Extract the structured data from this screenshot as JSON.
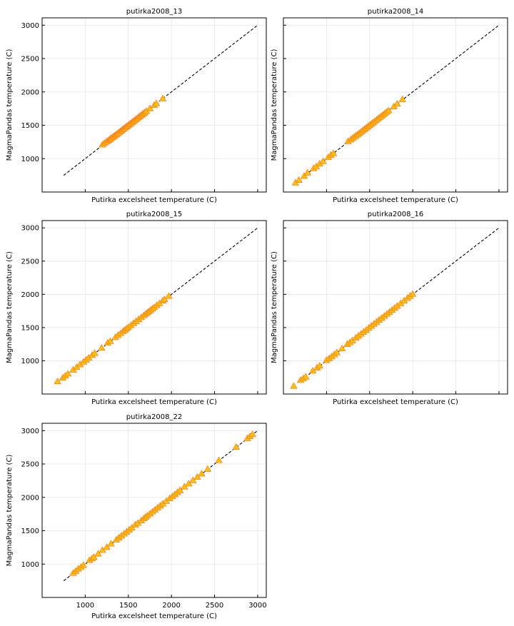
{
  "chart_data": [
    {
      "type": "scatter",
      "title": "putirka2008_13",
      "xlabel": "Putirka excelsheet temperature (C)",
      "ylabel": "MagmaPandas temperature (C)",
      "xlim": [
        500,
        3100
      ],
      "ylim": [
        500,
        3110
      ],
      "xticks": [
        1000,
        1500,
        2000,
        2500,
        3000
      ],
      "yticks": [
        1000,
        1500,
        2000,
        2500,
        3000
      ],
      "show_xtick_labels": false,
      "show_ytick_labels": true,
      "grid": true,
      "reference_line": {
        "x": [
          750,
          3000
        ],
        "y": [
          750,
          3000
        ],
        "style": "dashed",
        "color": "#000000"
      },
      "marker": {
        "shape": "triangle",
        "face": "#ffc107",
        "edge": "#ff7a1f"
      },
      "points": [
        [
          1200,
          1210
        ],
        [
          1220,
          1230
        ],
        [
          1240,
          1250
        ],
        [
          1260,
          1265
        ],
        [
          1275,
          1280
        ],
        [
          1290,
          1295
        ],
        [
          1300,
          1305
        ],
        [
          1315,
          1320
        ],
        [
          1330,
          1335
        ],
        [
          1345,
          1350
        ],
        [
          1360,
          1362
        ],
        [
          1375,
          1378
        ],
        [
          1390,
          1392
        ],
        [
          1405,
          1408
        ],
        [
          1420,
          1422
        ],
        [
          1435,
          1438
        ],
        [
          1450,
          1452
        ],
        [
          1465,
          1468
        ],
        [
          1480,
          1482
        ],
        [
          1495,
          1498
        ],
        [
          1510,
          1512
        ],
        [
          1525,
          1528
        ],
        [
          1540,
          1542
        ],
        [
          1555,
          1558
        ],
        [
          1570,
          1572
        ],
        [
          1585,
          1588
        ],
        [
          1600,
          1602
        ],
        [
          1615,
          1618
        ],
        [
          1630,
          1632
        ],
        [
          1645,
          1648
        ],
        [
          1660,
          1662
        ],
        [
          1675,
          1678
        ],
        [
          1690,
          1692
        ],
        [
          1710,
          1712
        ],
        [
          1750,
          1752
        ],
        [
          1800,
          1802
        ],
        [
          1825,
          1828
        ],
        [
          1900,
          1902
        ]
      ]
    },
    {
      "type": "scatter",
      "title": "putirka2008_14",
      "xlabel": "Putirka excelsheet temperature (C)",
      "ylabel": "MagmaPandas temperature (C)",
      "xlim": [
        500,
        3100
      ],
      "ylim": [
        500,
        3110
      ],
      "xticks": [
        1000,
        1500,
        2000,
        2500,
        3000
      ],
      "yticks": [
        1000,
        1500,
        2000,
        2500,
        3000
      ],
      "show_xtick_labels": false,
      "show_ytick_labels": false,
      "grid": true,
      "reference_line": {
        "x": [
          750,
          3000
        ],
        "y": [
          750,
          3000
        ],
        "style": "dashed",
        "color": "#000000"
      },
      "marker": {
        "shape": "triangle",
        "face": "#ffc107",
        "edge": "#ff7a1f"
      },
      "points": [
        [
          640,
          640
        ],
        [
          680,
          680
        ],
        [
          740,
          740
        ],
        [
          780,
          790
        ],
        [
          850,
          855
        ],
        [
          880,
          880
        ],
        [
          920,
          925
        ],
        [
          960,
          960
        ],
        [
          1020,
          1020
        ],
        [
          1050,
          1055
        ],
        [
          1080,
          1080
        ],
        [
          1250,
          1260
        ],
        [
          1280,
          1285
        ],
        [
          1300,
          1305
        ],
        [
          1320,
          1325
        ],
        [
          1340,
          1345
        ],
        [
          1360,
          1362
        ],
        [
          1380,
          1382
        ],
        [
          1400,
          1402
        ],
        [
          1420,
          1422
        ],
        [
          1440,
          1442
        ],
        [
          1460,
          1462
        ],
        [
          1480,
          1482
        ],
        [
          1500,
          1502
        ],
        [
          1520,
          1522
        ],
        [
          1540,
          1542
        ],
        [
          1560,
          1562
        ],
        [
          1580,
          1582
        ],
        [
          1600,
          1602
        ],
        [
          1620,
          1622
        ],
        [
          1640,
          1642
        ],
        [
          1660,
          1662
        ],
        [
          1680,
          1682
        ],
        [
          1700,
          1702
        ],
        [
          1720,
          1722
        ],
        [
          1780,
          1782
        ],
        [
          1820,
          1822
        ],
        [
          1880,
          1890
        ]
      ]
    },
    {
      "type": "scatter",
      "title": "putirka2008_15",
      "xlabel": "Putirka excelsheet temperature (C)",
      "ylabel": "MagmaPandas temperature (C)",
      "xlim": [
        500,
        3100
      ],
      "ylim": [
        500,
        3110
      ],
      "xticks": [
        1000,
        1500,
        2000,
        2500,
        3000
      ],
      "yticks": [
        1000,
        1500,
        2000,
        2500,
        3000
      ],
      "show_xtick_labels": false,
      "show_ytick_labels": true,
      "grid": true,
      "reference_line": {
        "x": [
          750,
          3000
        ],
        "y": [
          750,
          3000
        ],
        "style": "dashed",
        "color": "#000000"
      },
      "marker": {
        "shape": "triangle",
        "face": "#ffc107",
        "edge": "#ff7a1f"
      },
      "points": [
        [
          680,
          690
        ],
        [
          740,
          745
        ],
        [
          770,
          775
        ],
        [
          800,
          805
        ],
        [
          860,
          865
        ],
        [
          900,
          905
        ],
        [
          940,
          945
        ],
        [
          980,
          985
        ],
        [
          1010,
          1015
        ],
        [
          1040,
          1045
        ],
        [
          1080,
          1085
        ],
        [
          1110,
          1115
        ],
        [
          1190,
          1195
        ],
        [
          1260,
          1270
        ],
        [
          1290,
          1295
        ],
        [
          1350,
          1355
        ],
        [
          1380,
          1385
        ],
        [
          1410,
          1415
        ],
        [
          1440,
          1445
        ],
        [
          1460,
          1465
        ],
        [
          1480,
          1485
        ],
        [
          1500,
          1505
        ],
        [
          1530,
          1535
        ],
        [
          1560,
          1565
        ],
        [
          1590,
          1595
        ],
        [
          1620,
          1625
        ],
        [
          1650,
          1655
        ],
        [
          1680,
          1685
        ],
        [
          1700,
          1705
        ],
        [
          1720,
          1725
        ],
        [
          1740,
          1745
        ],
        [
          1760,
          1765
        ],
        [
          1780,
          1785
        ],
        [
          1800,
          1805
        ],
        [
          1830,
          1835
        ],
        [
          1860,
          1865
        ],
        [
          1900,
          1905
        ],
        [
          1920,
          1925
        ],
        [
          1970,
          1975
        ]
      ]
    },
    {
      "type": "scatter",
      "title": "putirka2008_16",
      "xlabel": "Putirka excelsheet temperature (C)",
      "ylabel": "MagmaPandas temperature (C)",
      "xlim": [
        500,
        3100
      ],
      "ylim": [
        500,
        3110
      ],
      "xticks": [
        1000,
        1500,
        2000,
        2500,
        3000
      ],
      "yticks": [
        1000,
        1500,
        2000,
        2500,
        3000
      ],
      "show_xtick_labels": false,
      "show_ytick_labels": false,
      "grid": true,
      "reference_line": {
        "x": [
          750,
          3000
        ],
        "y": [
          750,
          3000
        ],
        "style": "dashed",
        "color": "#000000"
      },
      "marker": {
        "shape": "triangle",
        "face": "#ffc107",
        "edge": "#ff7a1f"
      },
      "points": [
        [
          620,
          620
        ],
        [
          700,
          710
        ],
        [
          730,
          735
        ],
        [
          760,
          760
        ],
        [
          840,
          850
        ],
        [
          890,
          895
        ],
        [
          920,
          925
        ],
        [
          1000,
          1010
        ],
        [
          1030,
          1035
        ],
        [
          1060,
          1065
        ],
        [
          1090,
          1095
        ],
        [
          1120,
          1125
        ],
        [
          1180,
          1185
        ],
        [
          1240,
          1250
        ],
        [
          1270,
          1275
        ],
        [
          1300,
          1305
        ],
        [
          1340,
          1345
        ],
        [
          1370,
          1375
        ],
        [
          1400,
          1405
        ],
        [
          1430,
          1435
        ],
        [
          1460,
          1465
        ],
        [
          1490,
          1495
        ],
        [
          1520,
          1525
        ],
        [
          1550,
          1555
        ],
        [
          1580,
          1585
        ],
        [
          1610,
          1615
        ],
        [
          1640,
          1645
        ],
        [
          1670,
          1675
        ],
        [
          1700,
          1705
        ],
        [
          1730,
          1735
        ],
        [
          1760,
          1765
        ],
        [
          1790,
          1795
        ],
        [
          1820,
          1825
        ],
        [
          1860,
          1865
        ],
        [
          1900,
          1905
        ],
        [
          1940,
          1945
        ],
        [
          1970,
          1975
        ],
        [
          2000,
          2005
        ]
      ]
    },
    {
      "type": "scatter",
      "title": "putirka2008_22",
      "xlabel": "Putirka excelsheet temperature (C)",
      "ylabel": "MagmaPandas temperature (C)",
      "xlim": [
        500,
        3100
      ],
      "ylim": [
        500,
        3110
      ],
      "xticks": [
        1000,
        1500,
        2000,
        2500,
        3000
      ],
      "yticks": [
        1000,
        1500,
        2000,
        2500,
        3000
      ],
      "show_xtick_labels": true,
      "show_ytick_labels": true,
      "grid": true,
      "reference_line": {
        "x": [
          750,
          3000
        ],
        "y": [
          750,
          3000
        ],
        "style": "dashed",
        "color": "#000000"
      },
      "marker": {
        "shape": "triangle",
        "face": "#ffc107",
        "edge": "#ff7a1f"
      },
      "points": [
        [
          860,
          865
        ],
        [
          890,
          895
        ],
        [
          920,
          930
        ],
        [
          950,
          955
        ],
        [
          980,
          985
        ],
        [
          1050,
          1060
        ],
        [
          1080,
          1085
        ],
        [
          1100,
          1105
        ],
        [
          1150,
          1155
        ],
        [
          1200,
          1210
        ],
        [
          1250,
          1255
        ],
        [
          1300,
          1305
        ],
        [
          1360,
          1365
        ],
        [
          1390,
          1395
        ],
        [
          1420,
          1425
        ],
        [
          1450,
          1455
        ],
        [
          1480,
          1485
        ],
        [
          1510,
          1515
        ],
        [
          1540,
          1545
        ],
        [
          1580,
          1590
        ],
        [
          1610,
          1615
        ],
        [
          1650,
          1655
        ],
        [
          1680,
          1685
        ],
        [
          1700,
          1705
        ],
        [
          1720,
          1725
        ],
        [
          1750,
          1755
        ],
        [
          1780,
          1785
        ],
        [
          1810,
          1815
        ],
        [
          1840,
          1845
        ],
        [
          1870,
          1875
        ],
        [
          1900,
          1905
        ],
        [
          1940,
          1945
        ],
        [
          1980,
          1985
        ],
        [
          2010,
          2015
        ],
        [
          2040,
          2045
        ],
        [
          2070,
          2075
        ],
        [
          2100,
          2105
        ],
        [
          2150,
          2160
        ],
        [
          2200,
          2205
        ],
        [
          2250,
          2255
        ],
        [
          2300,
          2305
        ],
        [
          2350,
          2355
        ],
        [
          2420,
          2425
        ],
        [
          2550,
          2555
        ],
        [
          2750,
          2755
        ],
        [
          2880,
          2885
        ],
        [
          2910,
          2915
        ],
        [
          2940,
          2945
        ]
      ]
    }
  ]
}
